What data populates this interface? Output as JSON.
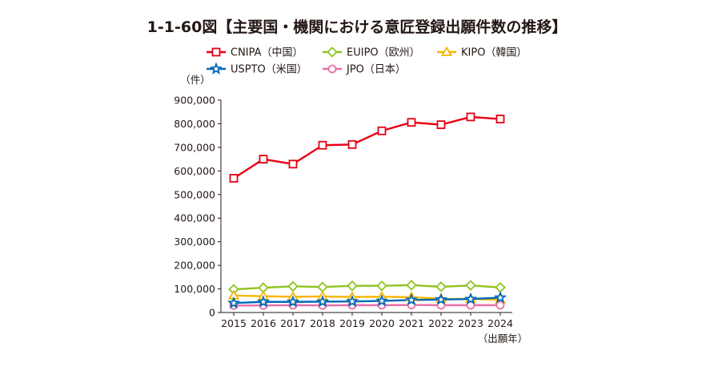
{
  "chart_data": {
    "type": "line",
    "title": "1-1-60図【主要国・機関における意匠登録出願件数の推移】",
    "ylabel": "（件）",
    "xlabel": "（出願年）",
    "categories": [
      "2015",
      "2016",
      "2017",
      "2018",
      "2019",
      "2020",
      "2021",
      "2022",
      "2023",
      "2024"
    ],
    "ylim": [
      0,
      900000
    ],
    "yticks": [
      0,
      100000,
      200000,
      300000,
      400000,
      500000,
      600000,
      700000,
      800000,
      900000
    ],
    "ytick_labels": [
      "0",
      "100,000",
      "200,000",
      "300,000",
      "400,000",
      "500,000",
      "600,000",
      "700,000",
      "800,000",
      "900,000"
    ],
    "grid": false,
    "legend_position": "top",
    "series": [
      {
        "name": "CNIPA（中国）",
        "color": "#e60012",
        "marker": "square",
        "values": [
          569000,
          650000,
          629000,
          709000,
          712000,
          770000,
          806000,
          796000,
          829000,
          820000
        ]
      },
      {
        "name": "EUIPO（欧州）",
        "color": "#8fc31f",
        "marker": "diamond",
        "values": [
          98000,
          105000,
          111000,
          108000,
          113000,
          113000,
          116000,
          109000,
          115000,
          106000
        ]
      },
      {
        "name": "KIPO（韓国）",
        "color": "#f8b500",
        "marker": "triangle",
        "values": [
          72000,
          69000,
          67000,
          68000,
          66000,
          67000,
          65000,
          58000,
          57000,
          54000
        ]
      },
      {
        "name": "USPTO（米国）",
        "color": "#0068b7",
        "marker": "star",
        "values": [
          40000,
          45000,
          45000,
          46000,
          47000,
          49000,
          53000,
          55000,
          57000,
          63000
        ]
      },
      {
        "name": "JPO（日本）",
        "color": "#eb6ea5",
        "marker": "circle",
        "values": [
          30000,
          30000,
          31000,
          30000,
          31000,
          31000,
          32000,
          31000,
          31000,
          31000
        ]
      }
    ]
  }
}
